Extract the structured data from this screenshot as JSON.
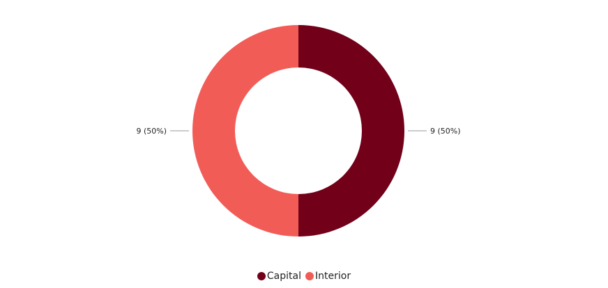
{
  "chart_data": {
    "type": "pie",
    "variant": "donut",
    "series": [
      {
        "name": "Capital",
        "value": 9,
        "label": "9 (50%)",
        "color": "#720019"
      },
      {
        "name": "Interior",
        "value": 9,
        "label": "9 (50%)",
        "color": "#f25c57"
      }
    ],
    "legend_position": "bottom"
  }
}
